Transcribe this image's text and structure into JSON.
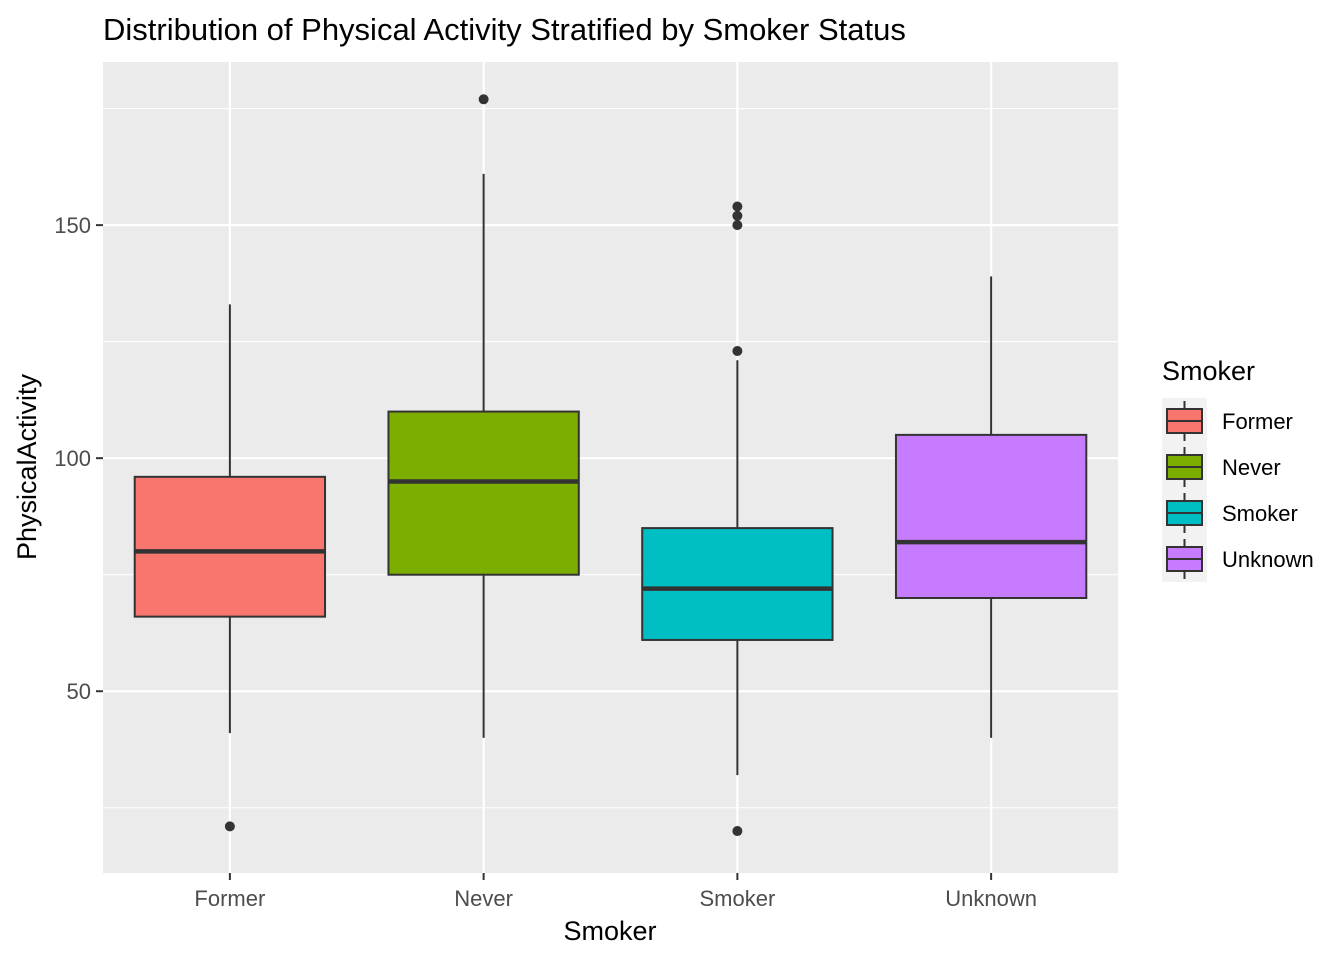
{
  "chart_data": {
    "type": "boxplot",
    "title": "Distribution of Physical Activity Stratified by Smoker Status",
    "xlabel": "Smoker",
    "ylabel": "PhysicalActivity",
    "categories": [
      "Former",
      "Never",
      "Smoker",
      "Unknown"
    ],
    "y_ticks": [
      50,
      100,
      150
    ],
    "y_tick_labels": [
      "50",
      "100",
      "150"
    ],
    "ylim": [
      11,
      185
    ],
    "grid": true,
    "legend": {
      "title": "Smoker",
      "placement": "right",
      "entries": [
        "Former",
        "Never",
        "Smoker",
        "Unknown"
      ]
    },
    "series": [
      {
        "category": "Former",
        "color": "#F8766D",
        "whisker_low": 41,
        "q1": 66,
        "median": 80,
        "q3": 96,
        "whisker_high": 133,
        "outliers": [
          21
        ]
      },
      {
        "category": "Never",
        "color": "#7CAE00",
        "whisker_low": 40,
        "q1": 75,
        "median": 95,
        "q3": 110,
        "whisker_high": 161,
        "outliers": [
          177
        ]
      },
      {
        "category": "Smoker",
        "color": "#00BFC4",
        "whisker_low": 32,
        "q1": 61,
        "median": 72,
        "q3": 85,
        "whisker_high": 121,
        "outliers": [
          154,
          152,
          150,
          123,
          20
        ]
      },
      {
        "category": "Unknown",
        "color": "#C77CFF",
        "whisker_low": 40,
        "q1": 70,
        "median": 82,
        "q3": 105,
        "whisker_high": 139,
        "outliers": []
      }
    ]
  }
}
